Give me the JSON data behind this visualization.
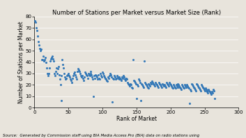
{
  "title": "Number of Stations per Market versus Market Size (Rank)",
  "xlabel": "Rank of Market",
  "ylabel": "Number of Stations per Market",
  "xlim": [
    0,
    300
  ],
  "ylim": [
    0,
    80
  ],
  "xticks": [
    0,
    50,
    100,
    150,
    200,
    250,
    300
  ],
  "yticks": [
    0,
    10,
    20,
    30,
    40,
    50,
    60,
    70,
    80
  ],
  "dot_color": "#2e75b6",
  "background_color": "#e8e4dc",
  "plot_bg_color": "#e8e4dc",
  "source_text": "Source:  Generated by Commission staff using BIA Media Access Pro (BIA) data on radio stations using",
  "x": [
    1,
    2,
    3,
    4,
    5,
    6,
    7,
    8,
    9,
    10,
    11,
    12,
    13,
    14,
    15,
    16,
    17,
    18,
    19,
    20,
    21,
    22,
    23,
    24,
    25,
    26,
    27,
    28,
    29,
    30,
    31,
    32,
    33,
    34,
    35,
    36,
    37,
    38,
    39,
    40,
    41,
    42,
    43,
    44,
    45,
    46,
    47,
    48,
    49,
    50,
    51,
    52,
    53,
    54,
    55,
    56,
    57,
    58,
    59,
    60,
    61,
    62,
    63,
    64,
    65,
    66,
    67,
    68,
    69,
    70,
    71,
    72,
    73,
    74,
    75,
    76,
    77,
    78,
    79,
    80,
    81,
    82,
    83,
    84,
    85,
    86,
    87,
    88,
    89,
    90,
    91,
    92,
    93,
    94,
    95,
    96,
    97,
    98,
    99,
    100,
    101,
    102,
    103,
    104,
    105,
    106,
    107,
    108,
    109,
    110,
    111,
    112,
    113,
    114,
    115,
    116,
    117,
    118,
    119,
    120,
    121,
    122,
    123,
    124,
    125,
    126,
    127,
    128,
    129,
    130,
    131,
    132,
    133,
    134,
    135,
    136,
    137,
    138,
    139,
    140,
    141,
    142,
    143,
    144,
    145,
    146,
    147,
    148,
    149,
    150,
    151,
    152,
    153,
    154,
    155,
    156,
    157,
    158,
    159,
    160,
    161,
    162,
    163,
    164,
    165,
    166,
    167,
    168,
    169,
    170,
    171,
    172,
    173,
    174,
    175,
    176,
    177,
    178,
    179,
    180,
    181,
    182,
    183,
    184,
    185,
    186,
    187,
    188,
    189,
    190,
    191,
    192,
    193,
    194,
    195,
    196,
    197,
    198,
    199,
    200,
    201,
    202,
    203,
    204,
    205,
    206,
    207,
    208,
    209,
    210,
    211,
    212,
    213,
    214,
    215,
    216,
    217,
    218,
    219,
    220,
    221,
    222,
    223,
    224,
    225,
    226,
    227,
    228,
    229,
    230,
    231,
    232,
    233,
    234,
    235,
    236,
    237,
    238,
    239,
    240,
    241,
    242,
    243,
    244,
    245,
    246,
    247,
    248,
    249,
    250,
    251,
    252,
    253,
    254,
    255,
    256,
    257,
    258,
    259,
    260,
    261,
    262,
    263,
    264,
    265
  ],
  "y": [
    76,
    75,
    70,
    68,
    63,
    58,
    55,
    52,
    50,
    51,
    42,
    42,
    45,
    41,
    42,
    44,
    40,
    35,
    30,
    28,
    30,
    35,
    41,
    43,
    44,
    45,
    43,
    41,
    30,
    28,
    32,
    35,
    30,
    34,
    36,
    29,
    25,
    20,
    28,
    6,
    42,
    38,
    35,
    30,
    27,
    25,
    26,
    28,
    29,
    30,
    28,
    27,
    25,
    24,
    22,
    26,
    28,
    30,
    31,
    29,
    27,
    25,
    32,
    34,
    33,
    32,
    30,
    28,
    27,
    28,
    26,
    24,
    27,
    31,
    30,
    29,
    28,
    26,
    30,
    29,
    28,
    32,
    30,
    29,
    27,
    25,
    10,
    28,
    26,
    29,
    28,
    27,
    25,
    29,
    26,
    25,
    30,
    28,
    27,
    31,
    30,
    28,
    27,
    26,
    25,
    24,
    23,
    27,
    26,
    28,
    30,
    29,
    27,
    5,
    26,
    25,
    28,
    27,
    25,
    26,
    28,
    27,
    26,
    25,
    27,
    26,
    25,
    24,
    27,
    26,
    28,
    27,
    25,
    24,
    26,
    25,
    22,
    21,
    20,
    19,
    21,
    20,
    18,
    17,
    42,
    24,
    23,
    22,
    21,
    8,
    20,
    19,
    25,
    24,
    22,
    6,
    21,
    20,
    19,
    18,
    41,
    22,
    21,
    20,
    19,
    18,
    17,
    21,
    20,
    19,
    22,
    21,
    23,
    22,
    21,
    20,
    19,
    22,
    21,
    20,
    19,
    18,
    22,
    21,
    20,
    19,
    18,
    21,
    20,
    19,
    20,
    19,
    18,
    22,
    21,
    20,
    19,
    22,
    21,
    20,
    19,
    18,
    17,
    20,
    19,
    18,
    17,
    20,
    19,
    18,
    21,
    20,
    19,
    18,
    17,
    16,
    20,
    19,
    18,
    17,
    20,
    19,
    18,
    20,
    19,
    18,
    17,
    4,
    16,
    15,
    21,
    20,
    19,
    18,
    17,
    16,
    15,
    21,
    20,
    19,
    18,
    17,
    16,
    15,
    20,
    19,
    18,
    17,
    16,
    15,
    17,
    16,
    15,
    14,
    13,
    16,
    15,
    14,
    13,
    12,
    14,
    13,
    16,
    15,
    8
  ]
}
